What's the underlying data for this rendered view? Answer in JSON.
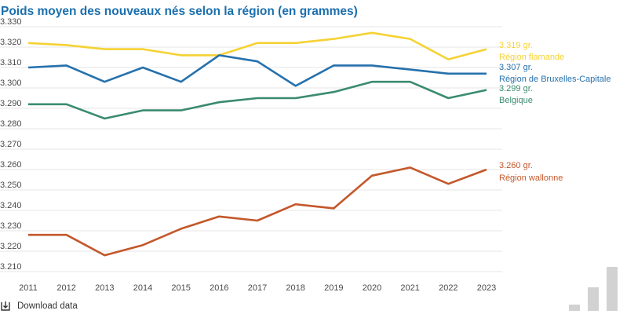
{
  "title": "Poids moyen des nouveaux nés selon la région (en grammes)",
  "footer": {
    "download_label": "Download data"
  },
  "chart_data": {
    "type": "line",
    "title": "Poids moyen des nouveaux nés selon la région (en grammes)",
    "xlabel": "",
    "ylabel": "",
    "x": [
      "2011",
      "2012",
      "2013",
      "2014",
      "2015",
      "2016",
      "2017",
      "2018",
      "2019",
      "2020",
      "2021",
      "2022",
      "2023"
    ],
    "ylim": [
      3210,
      3330
    ],
    "yticks": [
      3210,
      3220,
      3230,
      3240,
      3250,
      3260,
      3270,
      3280,
      3290,
      3300,
      3310,
      3320,
      3330
    ],
    "ytick_labels": [
      "3.210",
      "3.220",
      "3.230",
      "3.240",
      "3.250",
      "3.260",
      "3.270",
      "3.280",
      "3.290",
      "3.300",
      "3.310",
      "3.320",
      "3.330"
    ],
    "grid": true,
    "legend": "end-of-line labels",
    "series": [
      {
        "name": "Région flamande",
        "color": "#f5d233",
        "end_label": "3.319 gr.",
        "values": [
          3322,
          3321,
          3319,
          3319,
          3316,
          3316,
          3322,
          3322,
          3324,
          3327,
          3324,
          3314,
          3319
        ]
      },
      {
        "name": "Région de Bruxelles-Capitale",
        "color": "#2671ac",
        "end_label": "3.307 gr.",
        "values": [
          3310,
          3311,
          3303,
          3310,
          3303,
          3316,
          3313,
          3301,
          3311,
          3311,
          3309,
          3307,
          3307
        ]
      },
      {
        "name": "Belgique",
        "color": "#3a8b6f",
        "end_label": "3.299 gr.",
        "values": [
          3292,
          3292,
          3285,
          3289,
          3289,
          3293,
          3295,
          3295,
          3298,
          3303,
          3303,
          3295,
          3299
        ]
      },
      {
        "name": "Région wallonne",
        "color": "#c4572b",
        "end_label": "3.260 gr.",
        "values": [
          3228,
          3228,
          3218,
          3223,
          3231,
          3237,
          3235,
          3243,
          3241,
          3257,
          3261,
          3253,
          3260
        ]
      }
    ]
  }
}
